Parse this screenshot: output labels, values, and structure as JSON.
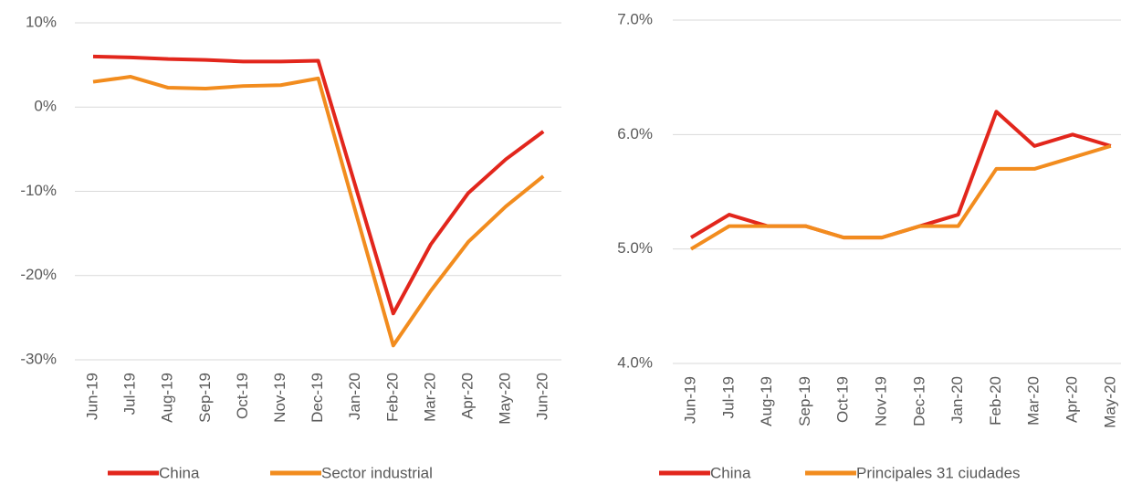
{
  "chart_data": [
    {
      "type": "line",
      "categories": [
        "Jun-19",
        "Jul-19",
        "Aug-19",
        "Sep-19",
        "Oct-19",
        "Nov-19",
        "Dec-19",
        "Jan-20",
        "Feb-20",
        "Mar-20",
        "Apr-20",
        "May-20",
        "Jun-20"
      ],
      "series": [
        {
          "name": "China",
          "color": "#e2261c",
          "values": [
            6.0,
            5.9,
            5.7,
            5.6,
            5.4,
            5.4,
            5.5,
            -9.5,
            -24.5,
            -16.3,
            -10.2,
            -6.2,
            -2.9
          ]
        },
        {
          "name": "Sector industrial",
          "color": "#f28c1e",
          "values": [
            3.0,
            3.6,
            2.3,
            2.2,
            2.5,
            2.6,
            3.4,
            -12.5,
            -28.3,
            -21.8,
            -16.0,
            -11.8,
            -8.2
          ]
        }
      ],
      "ylim": [
        -30,
        10
      ],
      "yticks": [
        {
          "value": -30,
          "label": "-30%"
        },
        {
          "value": -20,
          "label": "-20%"
        },
        {
          "value": -10,
          "label": "-10%"
        },
        {
          "value": 0,
          "label": "0%"
        },
        {
          "value": 10,
          "label": "10%"
        }
      ],
      "grid": true,
      "legend": "bottom"
    },
    {
      "type": "line",
      "categories": [
        "Jun-19",
        "Jul-19",
        "Aug-19",
        "Sep-19",
        "Oct-19",
        "Nov-19",
        "Dec-19",
        "Jan-20",
        "Feb-20",
        "Mar-20",
        "Apr-20",
        "May-20"
      ],
      "series": [
        {
          "name": "China",
          "color": "#e2261c",
          "values": [
            5.1,
            5.3,
            5.2,
            5.2,
            5.1,
            5.1,
            5.2,
            5.3,
            6.2,
            5.9,
            6.0,
            5.9
          ]
        },
        {
          "name": "Principales 31 ciudades",
          "color": "#f28c1e",
          "values": [
            5.0,
            5.2,
            5.2,
            5.2,
            5.1,
            5.1,
            5.2,
            5.2,
            5.7,
            5.7,
            5.8,
            5.9
          ]
        }
      ],
      "ylim": [
        4.0,
        7.0
      ],
      "yticks": [
        {
          "value": 4.0,
          "label": "4.0%"
        },
        {
          "value": 5.0,
          "label": "5.0%"
        },
        {
          "value": 6.0,
          "label": "6.0%"
        },
        {
          "value": 7.0,
          "label": "7.0%"
        }
      ],
      "grid": true,
      "legend": "bottom"
    }
  ]
}
